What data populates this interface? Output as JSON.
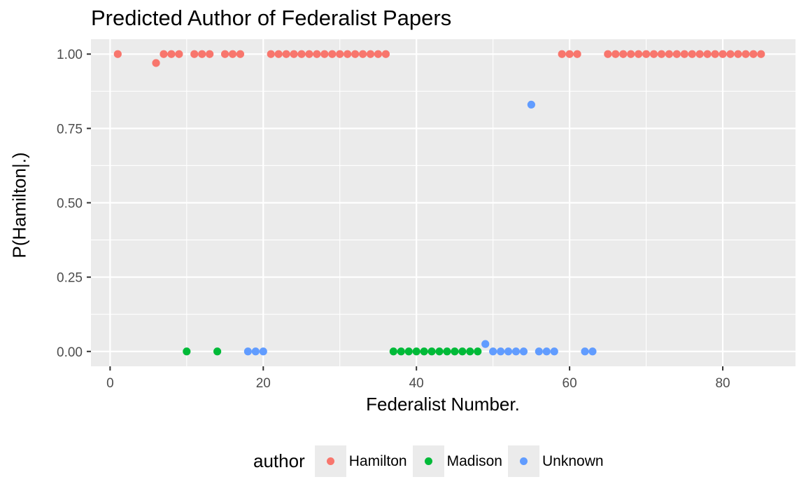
{
  "chart_data": {
    "type": "scatter",
    "title": "Predicted Author of Federalist Papers",
    "xlabel": "Federalist Number.",
    "ylabel": "P(Hamilton|.)",
    "xlim": [
      -2.5,
      89.5
    ],
    "ylim": [
      -0.05,
      1.05
    ],
    "x_ticks": [
      0,
      20,
      40,
      60,
      80
    ],
    "x_tick_labels": [
      "0",
      "20",
      "40",
      "60",
      "80"
    ],
    "y_ticks": [
      0,
      0.25,
      0.5,
      0.75,
      1
    ],
    "y_tick_labels": [
      "0.00",
      "0.25",
      "0.50",
      "0.75",
      "1.00"
    ],
    "grid": true,
    "legend": {
      "title": "author",
      "position": "bottom"
    },
    "series": [
      {
        "name": "Hamilton",
        "color": "#F8766D",
        "points": [
          [
            1,
            1
          ],
          [
            6,
            0.97
          ],
          [
            7,
            1
          ],
          [
            8,
            1
          ],
          [
            9,
            1
          ],
          [
            11,
            1
          ],
          [
            12,
            1
          ],
          [
            13,
            1
          ],
          [
            15,
            1
          ],
          [
            16,
            1
          ],
          [
            17,
            1
          ],
          [
            21,
            1
          ],
          [
            22,
            1
          ],
          [
            23,
            1
          ],
          [
            24,
            1
          ],
          [
            25,
            1
          ],
          [
            26,
            1
          ],
          [
            27,
            1
          ],
          [
            28,
            1
          ],
          [
            29,
            1
          ],
          [
            30,
            1
          ],
          [
            31,
            1
          ],
          [
            32,
            1
          ],
          [
            33,
            1
          ],
          [
            34,
            1
          ],
          [
            35,
            1
          ],
          [
            36,
            1
          ],
          [
            59,
            1
          ],
          [
            60,
            1
          ],
          [
            61,
            1
          ],
          [
            65,
            1
          ],
          [
            66,
            1
          ],
          [
            67,
            1
          ],
          [
            68,
            1
          ],
          [
            69,
            1
          ],
          [
            70,
            1
          ],
          [
            71,
            1
          ],
          [
            72,
            1
          ],
          [
            73,
            1
          ],
          [
            74,
            1
          ],
          [
            75,
            1
          ],
          [
            76,
            1
          ],
          [
            77,
            1
          ],
          [
            78,
            1
          ],
          [
            79,
            1
          ],
          [
            80,
            1
          ],
          [
            81,
            1
          ],
          [
            82,
            1
          ],
          [
            83,
            1
          ],
          [
            84,
            1
          ],
          [
            85,
            1
          ]
        ]
      },
      {
        "name": "Madison",
        "color": "#00BA38",
        "points": [
          [
            10,
            0
          ],
          [
            14,
            0
          ],
          [
            37,
            0
          ],
          [
            38,
            0
          ],
          [
            39,
            0
          ],
          [
            40,
            0
          ],
          [
            41,
            0
          ],
          [
            42,
            0
          ],
          [
            43,
            0
          ],
          [
            44,
            0
          ],
          [
            45,
            0
          ],
          [
            46,
            0
          ],
          [
            47,
            0
          ],
          [
            48,
            0
          ]
        ]
      },
      {
        "name": "Unknown",
        "color": "#619CFF",
        "points": [
          [
            18,
            0
          ],
          [
            19,
            0
          ],
          [
            20,
            0
          ],
          [
            49,
            0.025
          ],
          [
            50,
            0
          ],
          [
            51,
            0
          ],
          [
            52,
            0
          ],
          [
            53,
            0
          ],
          [
            54,
            0
          ],
          [
            55,
            0.83
          ],
          [
            56,
            0
          ],
          [
            57,
            0
          ],
          [
            58,
            0
          ],
          [
            62,
            0
          ],
          [
            63,
            0
          ]
        ]
      }
    ]
  }
}
